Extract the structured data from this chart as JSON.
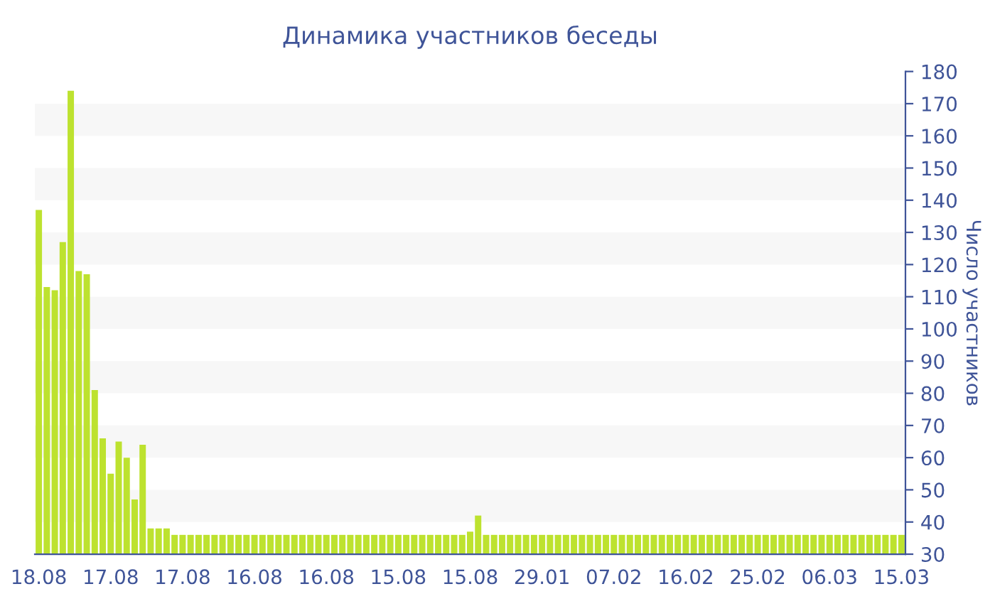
{
  "chart_data": {
    "type": "bar",
    "title": "Динамика участников беседы",
    "ylabel": "Число участников",
    "categories": [
      "18.08",
      null,
      null,
      null,
      null,
      null,
      null,
      null,
      null,
      "17.08",
      null,
      null,
      null,
      null,
      null,
      null,
      null,
      null,
      "17.08",
      null,
      null,
      null,
      null,
      null,
      null,
      null,
      null,
      "16.08",
      null,
      null,
      null,
      null,
      null,
      null,
      null,
      null,
      "16.08",
      null,
      null,
      null,
      null,
      null,
      null,
      null,
      null,
      "15.08",
      null,
      null,
      null,
      null,
      null,
      null,
      null,
      null,
      "15.08",
      null,
      null,
      null,
      null,
      null,
      null,
      null,
      null,
      "29.01",
      null,
      null,
      null,
      null,
      null,
      null,
      null,
      null,
      "07.02",
      null,
      null,
      null,
      null,
      null,
      null,
      null,
      null,
      "16.02",
      null,
      null,
      null,
      null,
      null,
      null,
      null,
      null,
      "25.02",
      null,
      null,
      null,
      null,
      null,
      null,
      null,
      null,
      "06.03",
      null,
      null,
      null,
      null,
      null,
      null,
      null,
      null,
      "15.03"
    ],
    "values": [
      137,
      113,
      112,
      127,
      174,
      118,
      117,
      81,
      66,
      55,
      65,
      60,
      47,
      64,
      38,
      38,
      38,
      36,
      36,
      36,
      36,
      36,
      36,
      36,
      36,
      36,
      36,
      36,
      36,
      36,
      36,
      36,
      36,
      36,
      36,
      36,
      36,
      36,
      36,
      36,
      36,
      36,
      36,
      36,
      36,
      36,
      36,
      36,
      36,
      36,
      36,
      36,
      36,
      36,
      37,
      42,
      36,
      36,
      36,
      36,
      36,
      36,
      36,
      36,
      36,
      36,
      36,
      36,
      36,
      36,
      36,
      36,
      36,
      36,
      36,
      36,
      36,
      36,
      36,
      36,
      36,
      36,
      36,
      36,
      36,
      36,
      36,
      36,
      36,
      36,
      36,
      36,
      36,
      36,
      36,
      36,
      36,
      36,
      36,
      36,
      36,
      36,
      36,
      36,
      36,
      36,
      36,
      36,
      36
    ],
    "color": "#bde22f",
    "ylim": [
      30,
      180
    ],
    "yticks": [
      30,
      40,
      50,
      60,
      70,
      80,
      90,
      100,
      110,
      120,
      130,
      140,
      150,
      160,
      170,
      180
    ],
    "legend": false,
    "bands": [
      {
        "axis": "y",
        "from": 40,
        "to": 50,
        "color": "#f7f7f7"
      },
      {
        "axis": "y",
        "from": 60,
        "to": 70,
        "color": "#f7f7f7"
      },
      {
        "axis": "y",
        "from": 80,
        "to": 90,
        "color": "#f7f7f7"
      },
      {
        "axis": "y",
        "from": 100,
        "to": 110,
        "color": "#f7f7f7"
      },
      {
        "axis": "y",
        "from": 120,
        "to": 130,
        "color": "#f7f7f7"
      },
      {
        "axis": "y",
        "from": 140,
        "to": 150,
        "color": "#f7f7f7"
      },
      {
        "axis": "y",
        "from": 160,
        "to": 170,
        "color": "#f7f7f7"
      }
    ]
  }
}
